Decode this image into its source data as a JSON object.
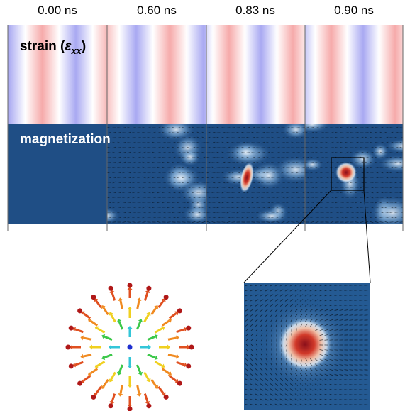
{
  "columns": [
    {
      "label": "0.00 ns"
    },
    {
      "label": "0.60 ns"
    },
    {
      "label": "0.83 ns"
    },
    {
      "label": "0.90 ns"
    }
  ],
  "rows": {
    "strain": {
      "label": "strain (",
      "symbol": "ε",
      "subscript": "xx",
      "close": ")"
    },
    "magnetization": {
      "label": "magnetization"
    }
  }
}
